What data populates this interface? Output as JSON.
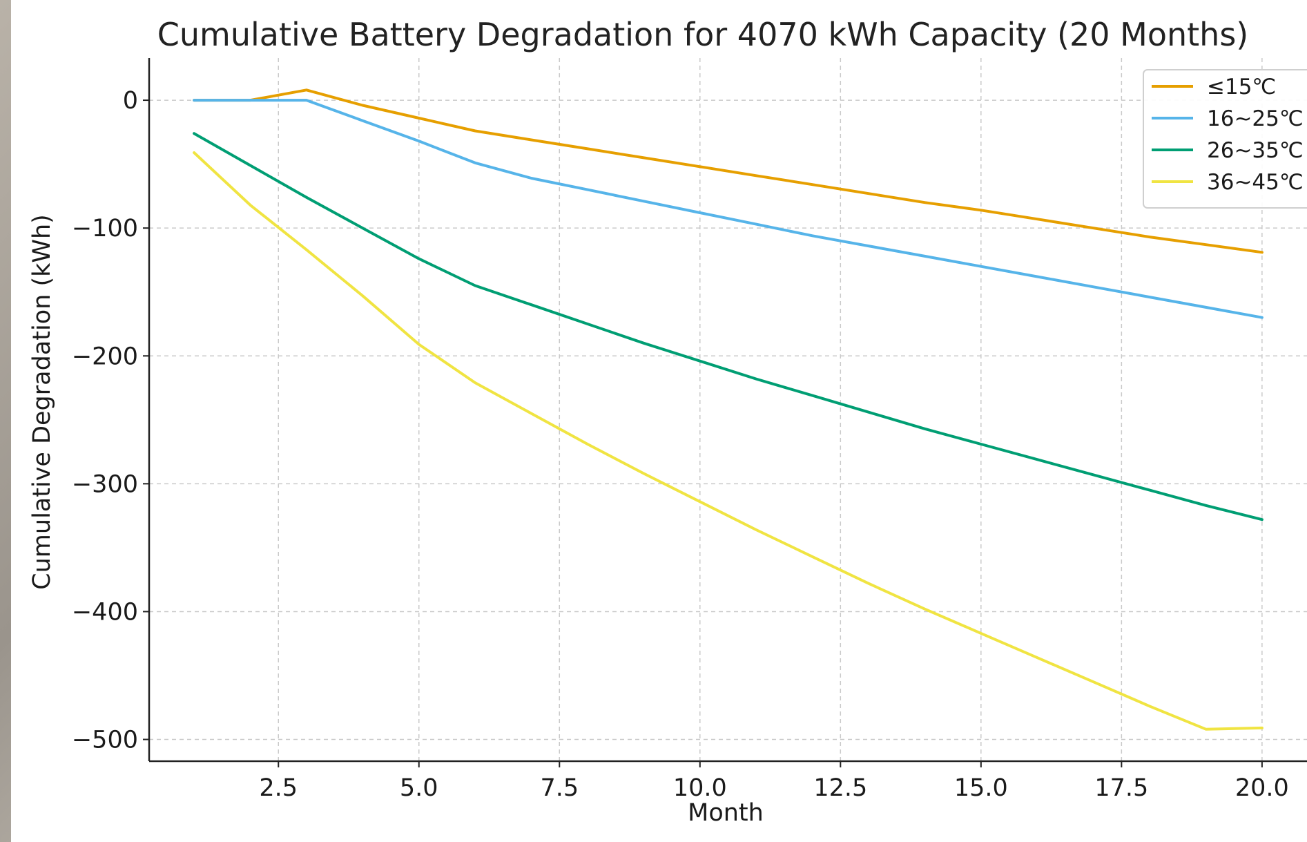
{
  "chart_data": {
    "type": "line",
    "title": "Cumulative Battery Degradation for 4070 kWh Capacity (20 Months)",
    "xlabel": "Month",
    "ylabel": "Cumulative Degradation (kWh)",
    "xlim": [
      0.2,
      20.8
    ],
    "ylim": [
      -517,
      33
    ],
    "xticks": [
      2.5,
      5.0,
      7.5,
      10.0,
      12.5,
      15.0,
      17.5,
      20.0
    ],
    "xtick_labels": [
      "2.5",
      "5.0",
      "7.5",
      "10.0",
      "12.5",
      "15.0",
      "17.5",
      "20.0"
    ],
    "yticks": [
      0,
      -100,
      -200,
      -300,
      -400,
      -500
    ],
    "ytick_labels": [
      "0",
      "−100",
      "−200",
      "−300",
      "−400",
      "−500"
    ],
    "grid": true,
    "legend_position": "top-right",
    "x": [
      1,
      2,
      3,
      4,
      5,
      6,
      7,
      8,
      9,
      10,
      11,
      12,
      13,
      14,
      15,
      16,
      17,
      18,
      19,
      20
    ],
    "series": [
      {
        "name": "≤15℃",
        "color": "#E69F00",
        "values": [
          0,
          0,
          8,
          -4,
          -14,
          -24,
          -31,
          -38,
          -45,
          -52,
          -59,
          -66,
          -73,
          -80,
          -86,
          -93,
          -100,
          -107,
          -113,
          -119
        ]
      },
      {
        "name": "16~25℃",
        "color": "#56B4E9",
        "values": [
          0,
          0,
          0,
          -16,
          -32,
          -49,
          -61,
          -70,
          -79,
          -88,
          -97,
          -106,
          -114,
          -122,
          -130,
          -138,
          -146,
          -154,
          -162,
          -170
        ]
      },
      {
        "name": "26~35℃",
        "color": "#009E73",
        "values": [
          -26,
          -51,
          -76,
          -100,
          -124,
          -145,
          -160,
          -175,
          -190,
          -204,
          -218,
          -231,
          -244,
          -257,
          -269,
          -281,
          -293,
          -305,
          -317,
          -328
        ]
      },
      {
        "name": "36~45℃",
        "color": "#F0E442",
        "values": [
          -41,
          -82,
          -117,
          -153,
          -191,
          -221,
          -245,
          -269,
          -292,
          -314,
          -336,
          -357,
          -378,
          -398,
          -417,
          -436,
          -455,
          -474,
          -492,
          -491
        ]
      }
    ]
  }
}
